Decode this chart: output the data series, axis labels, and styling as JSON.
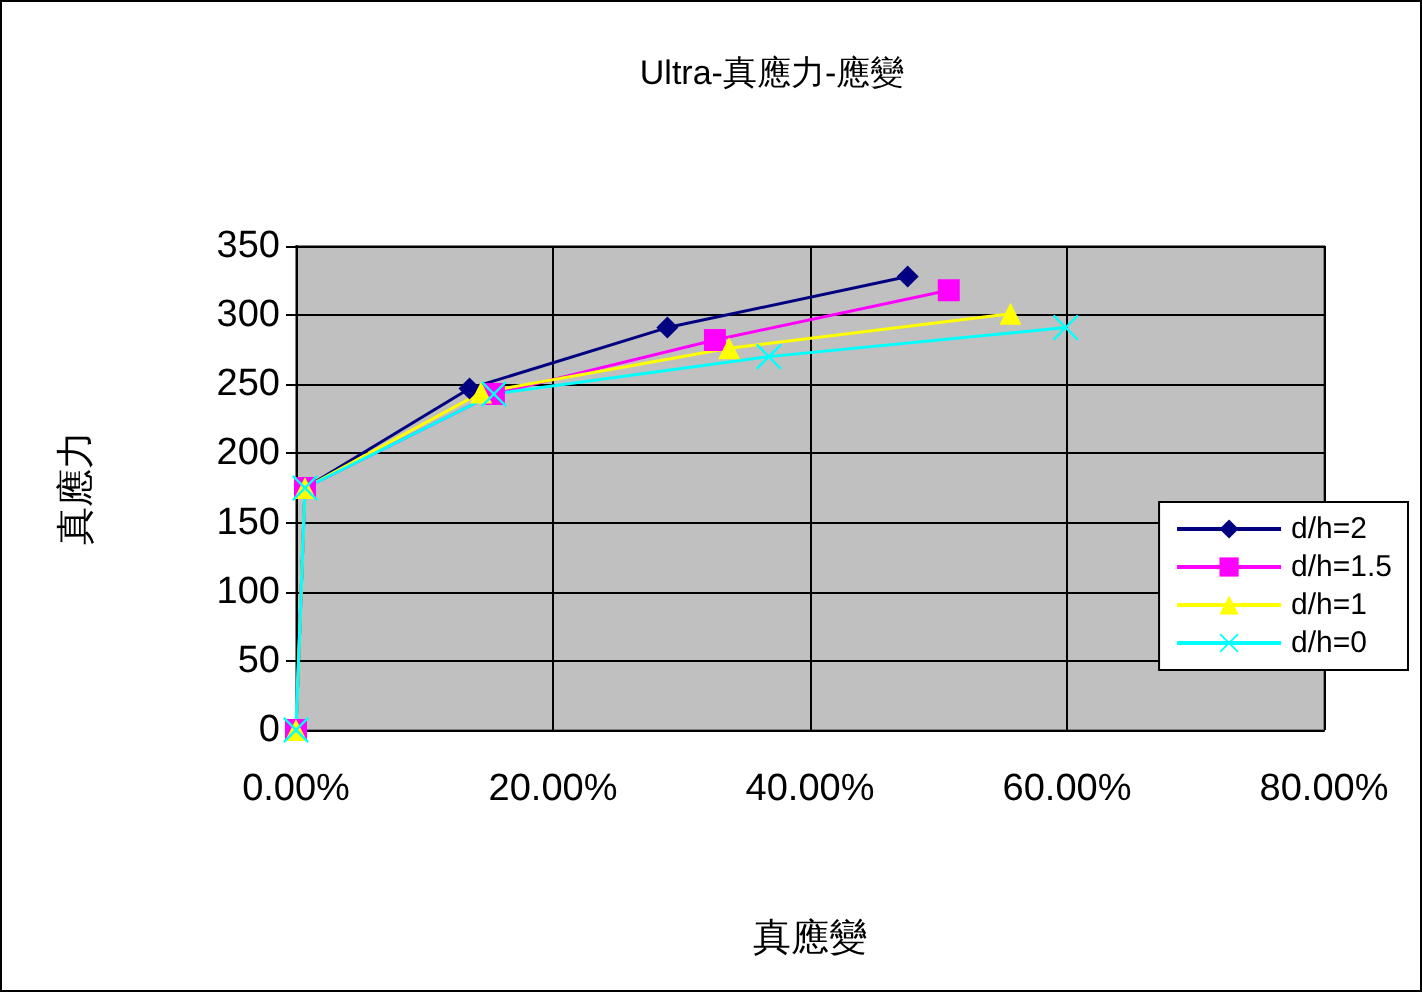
{
  "chart_data": {
    "type": "line",
    "title": "Ultra-真應力-應變",
    "xlabel": "真應變",
    "ylabel": "真應力",
    "xlim": [
      0,
      80
    ],
    "xticks": [
      {
        "value": 0,
        "label": "0.00%"
      },
      {
        "value": 20,
        "label": "20.00%"
      },
      {
        "value": 40,
        "label": "40.00%"
      },
      {
        "value": 60,
        "label": "60.00%"
      },
      {
        "value": 80,
        "label": "80.00%"
      }
    ],
    "ylim": [
      0,
      350
    ],
    "yticks": [
      0,
      50,
      100,
      150,
      200,
      250,
      300,
      350
    ],
    "grid": true,
    "legend": "right",
    "series": [
      {
        "name": "d/h=2",
        "color": "#000080",
        "marker": "diamond",
        "x": [
          0,
          0.7,
          13.5,
          28.9,
          47.6
        ],
        "values": [
          0,
          175,
          247,
          291,
          328
        ]
      },
      {
        "name": "d/h=1.5",
        "color": "#ff00ff",
        "marker": "square",
        "x": [
          0,
          0.7,
          15.4,
          32.6,
          50.8
        ],
        "values": [
          0,
          175,
          243,
          282,
          318
        ]
      },
      {
        "name": "d/h=1",
        "color": "#ffff00",
        "marker": "triangle",
        "x": [
          0,
          0.7,
          14.4,
          33.7,
          55.6
        ],
        "values": [
          0,
          175,
          244,
          276,
          301
        ]
      },
      {
        "name": "d/h=0",
        "color": "#00ffff",
        "marker": "cross",
        "x": [
          0,
          0.7,
          15.4,
          36.8,
          59.9
        ],
        "values": [
          0,
          175,
          243,
          270,
          291
        ]
      }
    ]
  }
}
